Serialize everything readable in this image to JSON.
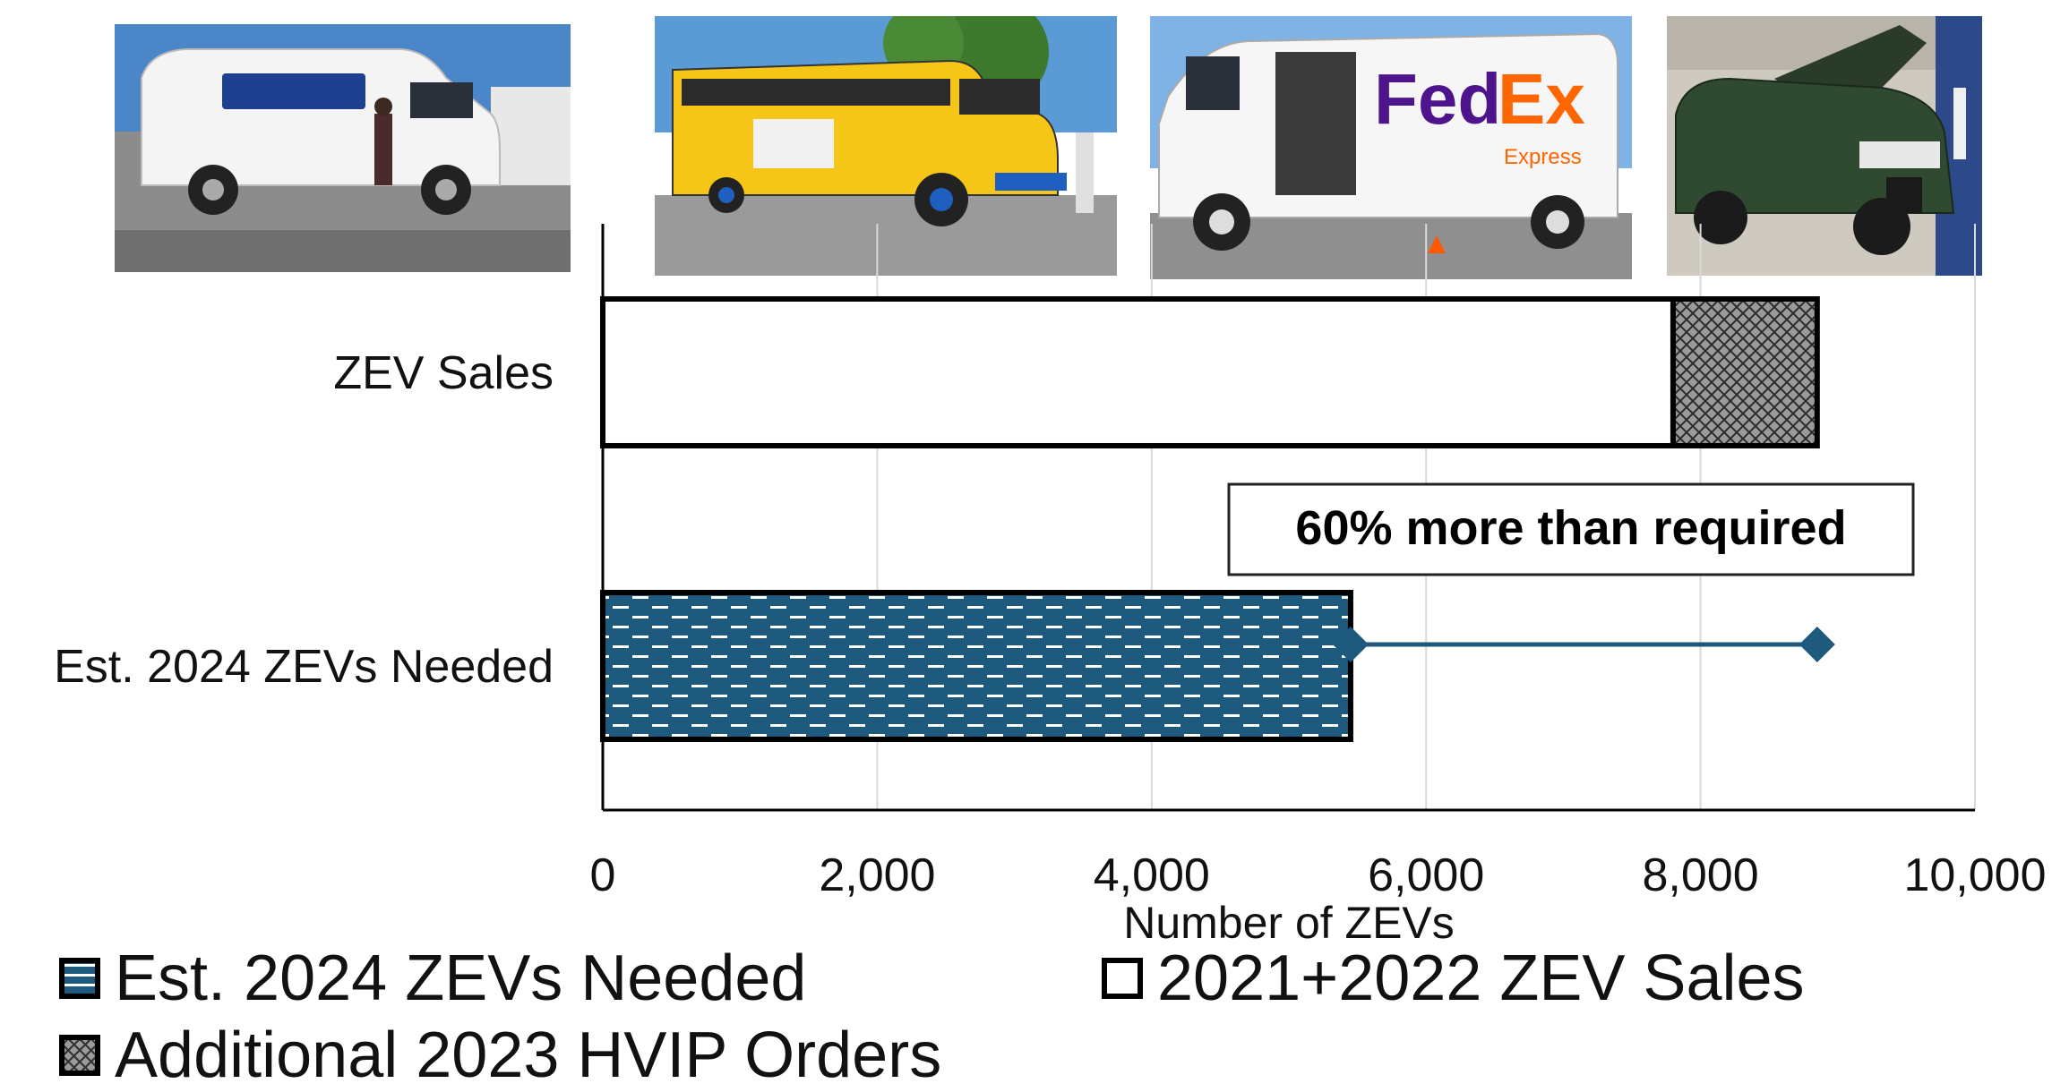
{
  "chart_data": {
    "type": "bar",
    "orientation": "horizontal",
    "stacked": true,
    "title": "",
    "xlabel": "Number of ZEVs",
    "ylabel": "",
    "xlim": [
      0,
      10000
    ],
    "xticks": [
      0,
      2000,
      4000,
      6000,
      8000,
      10000
    ],
    "xtick_labels": [
      "0",
      "2,000",
      "4,000",
      "6,000",
      "8,000",
      "10,000"
    ],
    "grid": "vertical",
    "categories": [
      "ZEV Sales",
      "Est. 2024 ZEVs Needed"
    ],
    "series": [
      {
        "name": "Est. 2024 ZEVs Needed",
        "values": [
          0,
          5450
        ],
        "color": "#1e5a7e",
        "pattern": "horizontal-dashes"
      },
      {
        "name": "2021+2022 ZEV Sales",
        "values": [
          7800,
          0
        ],
        "color": "#ffffff",
        "pattern": "none"
      },
      {
        "name": "Additional 2023 HVIP Orders",
        "values": [
          1050,
          0
        ],
        "color": "#9a9a9a",
        "pattern": "crosshatch"
      }
    ],
    "annotation": {
      "text": "60% more than required",
      "arrow_from": 5450,
      "arrow_to": 8850,
      "arrow_color": "#1e5a7e"
    },
    "legend_position": "bottom"
  },
  "photos": [
    {
      "subject": "white-electric-cargo-van",
      "icon": "van-photo"
    },
    {
      "subject": "yellow-electric-school-bus",
      "icon": "bus-photo"
    },
    {
      "subject": "fedex-electric-delivery-van",
      "icon": "delivery-van-photo",
      "logo_text_1": "Fed",
      "logo_text_2": "Ex",
      "logo_sub": "Express"
    },
    {
      "subject": "green-electric-pickup-truck",
      "icon": "truck-photo"
    }
  ],
  "colors": {
    "needed": "#1e5a7e",
    "grid": "#d9d9d9",
    "axis": "#000000",
    "fedex_purple": "#4d148c",
    "fedex_orange": "#ff6600"
  }
}
